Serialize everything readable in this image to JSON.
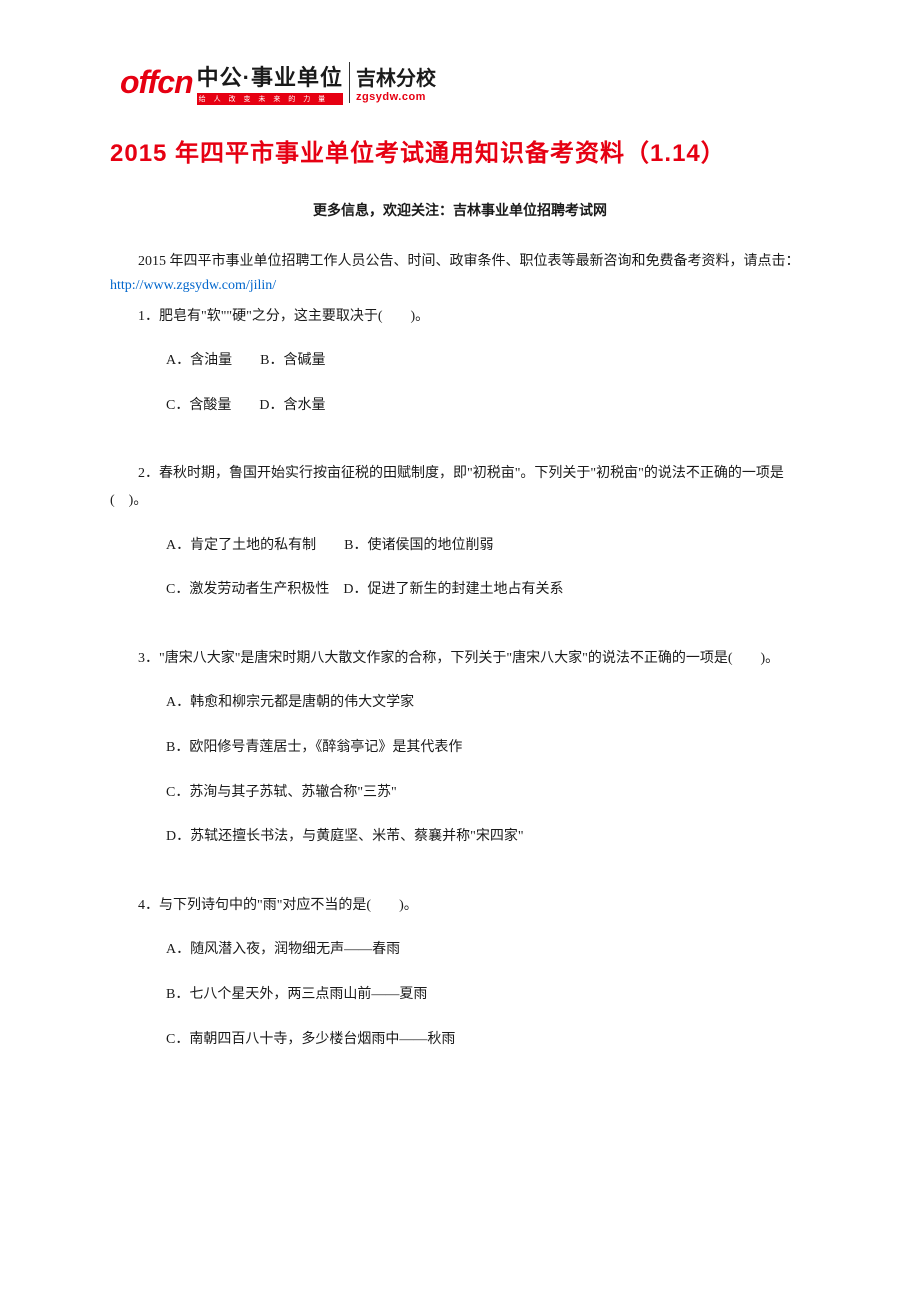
{
  "logo": {
    "offcn": "offcn",
    "main_text": "中公·事业单位",
    "tagline": "给 人 改 变 未 来 的 力 量",
    "jilin_text": "吉林分校",
    "jilin_url": "zgsydw.com"
  },
  "document": {
    "title": "2015 年四平市事业单位考试通用知识备考资料（1.14）",
    "subtitle_prefix": "更多信息，欢迎关注：",
    "subtitle_link": "吉林事业单位招聘考试网",
    "intro_part1": "2015 年四平市事业单位招聘工作人员公告、时间、政审条件、职位表等最新咨询和免费备考资料，请点击：",
    "intro_link": "http://www.zgsydw.com/jilin/",
    "link_color": "#0066cc",
    "title_color": "#e60012",
    "text_color": "#1a1a1a",
    "background_color": "#ffffff",
    "body_fontsize": 14,
    "title_fontsize": 24
  },
  "questions": [
    {
      "number": "1",
      "text": "1．肥皂有\"软\"\"硬\"之分，这主要取决于(　　)。",
      "options_grouped": [
        "A．含油量　　B．含碱量",
        "C．含酸量　　D．含水量"
      ]
    },
    {
      "number": "2",
      "text": "2．春秋时期，鲁国开始实行按亩征税的田赋制度，即\"初税亩\"。下列关于\"初税亩\"的说法不正确的一项是(　)。",
      "options_grouped": [
        "A．肯定了土地的私有制　　B．使诸侯国的地位削弱",
        "C．激发劳动者生产积极性　D．促进了新生的封建土地占有关系"
      ]
    },
    {
      "number": "3",
      "text": "3．\"唐宋八大家\"是唐宋时期八大散文作家的合称，下列关于\"唐宋八大家\"的说法不正确的一项是(　　)。",
      "options_single": [
        "A．韩愈和柳宗元都是唐朝的伟大文学家",
        "B．欧阳修号青莲居士，《醉翁亭记》是其代表作",
        "C．苏洵与其子苏轼、苏辙合称\"三苏\"",
        "D．苏轼还擅长书法，与黄庭坚、米芾、蔡襄并称\"宋四家\""
      ]
    },
    {
      "number": "4",
      "text": "4．与下列诗句中的\"雨\"对应不当的是(　　)。",
      "options_single": [
        "A．随风潜入夜，润物细无声——春雨",
        "B．七八个星天外，两三点雨山前——夏雨",
        "C．南朝四百八十寺，多少楼台烟雨中——秋雨"
      ]
    }
  ]
}
